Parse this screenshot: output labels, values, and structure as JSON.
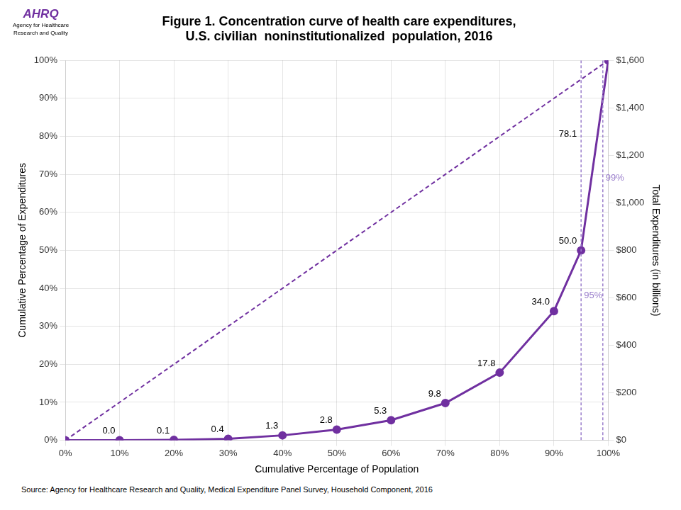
{
  "chart_data": {
    "type": "line",
    "title": [
      "Figure 1. Concentration curve of health care expenditures,",
      "U.S. civilian  noninstitutionalized  population, 2016"
    ],
    "xlabel": "Cumulative Percentage of Population",
    "ylabel": "Cumulative Percentage of Expenditures",
    "y2label": "Total Expenditures (in billions)",
    "source": "Source: Agency for Healthcare Research and Quality, Medical Expenditure Panel Survey, Household Component, 2016",
    "xlim": [
      0,
      100
    ],
    "xticks": [
      {
        "value": 0,
        "label": "0%"
      },
      {
        "value": 10,
        "label": "10%"
      },
      {
        "value": 20,
        "label": "20%"
      },
      {
        "value": 30,
        "label": "30%"
      },
      {
        "value": 40,
        "label": "40%"
      },
      {
        "value": 50,
        "label": "50%"
      },
      {
        "value": 60,
        "label": "60%"
      },
      {
        "value": 70,
        "label": "70%"
      },
      {
        "value": 80,
        "label": "80%"
      },
      {
        "value": 90,
        "label": "90%"
      },
      {
        "value": 100,
        "label": "100%"
      }
    ],
    "ylim": [
      0,
      100
    ],
    "yticks": [
      {
        "value": 0,
        "label": "0%"
      },
      {
        "value": 10,
        "label": "10%"
      },
      {
        "value": 20,
        "label": "20%"
      },
      {
        "value": 30,
        "label": "30%"
      },
      {
        "value": 40,
        "label": "40%"
      },
      {
        "value": 50,
        "label": "50%"
      },
      {
        "value": 60,
        "label": "60%"
      },
      {
        "value": 70,
        "label": "70%"
      },
      {
        "value": 80,
        "label": "80%"
      },
      {
        "value": 90,
        "label": "90%"
      },
      {
        "value": 100,
        "label": "100%"
      }
    ],
    "y2lim": [
      0,
      1600
    ],
    "y2ticks": [
      {
        "value": 0,
        "label": "$0"
      },
      {
        "value": 200,
        "label": "$200"
      },
      {
        "value": 400,
        "label": "$400"
      },
      {
        "value": 600,
        "label": "$600"
      },
      {
        "value": 800,
        "label": "$800"
      },
      {
        "value": 1000,
        "label": "$1,000"
      },
      {
        "value": 1200,
        "label": "$1,200"
      },
      {
        "value": 1400,
        "label": "$1,400"
      },
      {
        "value": 1600,
        "label": "$1,600"
      }
    ],
    "grid": true,
    "series": [
      {
        "type": "line",
        "color": "#7030A0",
        "marker": "circle",
        "x": [
          0,
          10,
          20,
          30,
          40,
          50,
          60,
          70,
          80,
          90,
          95,
          100
        ],
        "values": [
          0.0,
          0.0,
          0.1,
          0.4,
          1.3,
          2.8,
          5.3,
          9.8,
          17.8,
          34.0,
          50.0,
          100.0
        ],
        "value_labels": [
          null,
          "0.0",
          "0.1",
          "0.4",
          "1.3",
          "2.8",
          "5.3",
          "9.8",
          "17.8",
          "34.0",
          "50.0",
          null
        ]
      },
      {
        "type": "line",
        "color": "#7030A0",
        "line_style": "dashed",
        "x": [
          0,
          100
        ],
        "values": [
          0,
          100
        ]
      }
    ],
    "annotations": [
      {
        "type": "vline",
        "x": 95,
        "text": "95%",
        "color": "#9B7FCC"
      },
      {
        "type": "vline",
        "x": 99,
        "text": "99%",
        "color": "#9B7FCC"
      },
      {
        "type": "text",
        "x": 95,
        "y": 78.1,
        "text": "78.1"
      },
      {
        "type": "logo",
        "text": "AHRQ",
        "color": "#7030A0"
      },
      {
        "type": "logo",
        "text": "Agency for Healthcare\nResearch and Quality"
      }
    ]
  }
}
